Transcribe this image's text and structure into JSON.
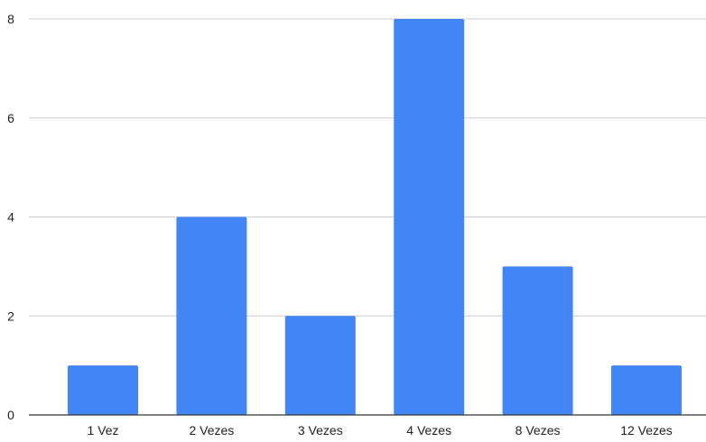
{
  "chart_data": {
    "type": "bar",
    "title": "",
    "xlabel": "",
    "ylabel": "",
    "categories": [
      "1 Vez",
      "2 Vezes",
      "3 Vezes",
      "4 Vezes",
      "8 Vezes",
      "12 Vezes"
    ],
    "values": [
      1,
      4,
      2,
      8,
      3,
      1
    ],
    "ylim": [
      0,
      8
    ],
    "yticks": [
      0,
      2,
      4,
      6,
      8
    ],
    "grid": true,
    "legend": "none",
    "colors": {
      "bar": "#4285f4",
      "grid": "#cccccc",
      "axis": "#333333",
      "text": "#222222"
    }
  }
}
